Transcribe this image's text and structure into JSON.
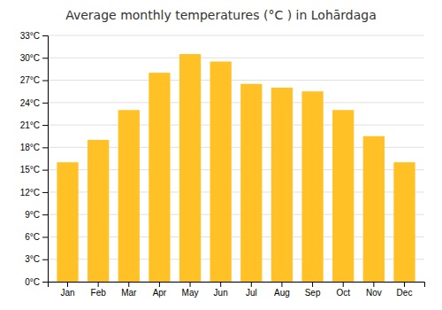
{
  "chart_data": {
    "type": "bar",
    "title": "Average monthly temperatures (°C ) in Lohārdaga",
    "categories": [
      "Jan",
      "Feb",
      "Mar",
      "Apr",
      "May",
      "Jun",
      "Jul",
      "Aug",
      "Sep",
      "Oct",
      "Nov",
      "Dec"
    ],
    "values": [
      16.0,
      19.0,
      23.0,
      28.0,
      30.5,
      29.5,
      26.5,
      26.0,
      25.5,
      23.0,
      19.5,
      16.0
    ],
    "color": "#FFC125",
    "ylim": [
      0,
      33
    ],
    "yticks": [
      {
        "value": 0,
        "label": "0°C"
      },
      {
        "value": 3,
        "label": "3°C"
      },
      {
        "value": 6,
        "label": "6°C"
      },
      {
        "value": 9,
        "label": "9°C"
      },
      {
        "value": 12,
        "label": "12°C"
      },
      {
        "value": 15,
        "label": "15°C"
      },
      {
        "value": 18,
        "label": "18°C"
      },
      {
        "value": 21,
        "label": "21°C"
      },
      {
        "value": 24,
        "label": "24°C"
      },
      {
        "value": 27,
        "label": "27°C"
      },
      {
        "value": 30,
        "label": "30°C"
      },
      {
        "value": 33,
        "label": "33°C"
      }
    ],
    "grid": true
  }
}
